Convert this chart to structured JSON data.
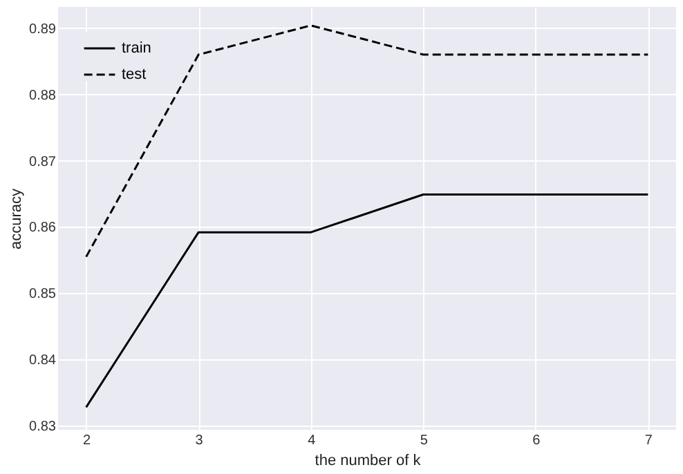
{
  "chart_data": {
    "type": "line",
    "xlabel": "the number of k",
    "ylabel": "accuracy",
    "x": [
      2,
      3,
      4,
      5,
      6,
      7
    ],
    "series": [
      {
        "name": "train",
        "color": "#000000",
        "line_style": "solid",
        "values": [
          0.8328,
          0.8592,
          0.8592,
          0.8649,
          0.8649,
          0.8649
        ]
      },
      {
        "name": "test",
        "color": "#000000",
        "line_style": "dashed",
        "values": [
          0.8555,
          0.886,
          0.8904,
          0.886,
          0.886,
          0.886
        ]
      }
    ],
    "xlim": [
      1.75,
      7.25
    ],
    "ylim": [
      0.8294,
      0.8932
    ],
    "xticks": [
      2,
      3,
      4,
      5,
      6,
      7
    ],
    "yticks": [
      0.83,
      0.84,
      0.85,
      0.86,
      0.87,
      0.88,
      0.89
    ],
    "grid": true,
    "legend": "top left",
    "marker": "none"
  }
}
